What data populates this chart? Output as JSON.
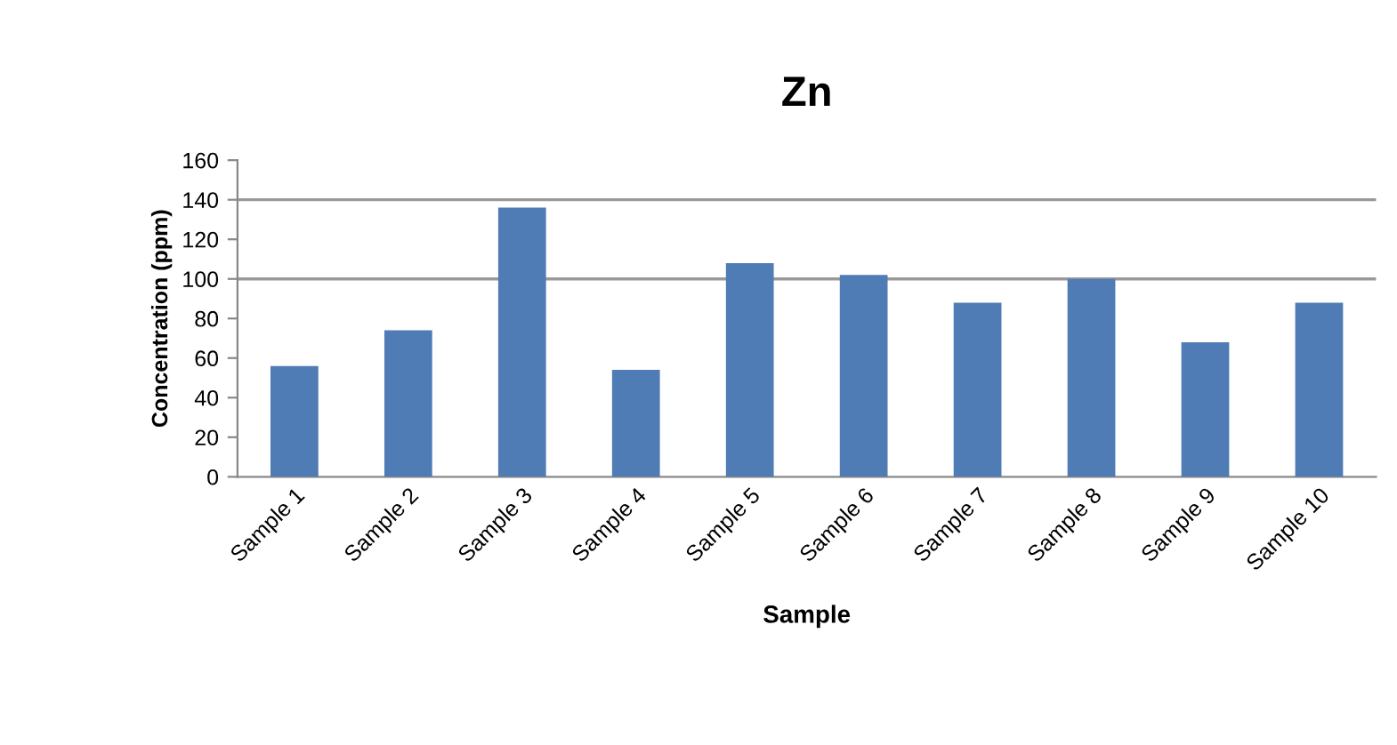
{
  "chart_data": {
    "type": "bar",
    "title": "Zn",
    "xlabel": "Sample",
    "ylabel": "Concentration (ppm)",
    "categories": [
      "Sample 1",
      "Sample 2",
      "Sample 3",
      "Sample 4",
      "Sample 5",
      "Sample 6",
      "Sample 7",
      "Sample 8",
      "Sample 9",
      "Sample 10"
    ],
    "values": [
      56,
      74,
      136,
      54,
      108,
      102,
      88,
      100,
      68,
      88
    ],
    "color": "#4f7cb5",
    "ylim": [
      0,
      160
    ],
    "yticks": [
      0,
      20,
      40,
      60,
      80,
      100,
      120,
      140,
      160
    ],
    "ref_lines": [
      {
        "axis": "y",
        "value": 100,
        "color": "#999999"
      },
      {
        "axis": "y",
        "value": 140,
        "color": "#999999"
      }
    ]
  }
}
